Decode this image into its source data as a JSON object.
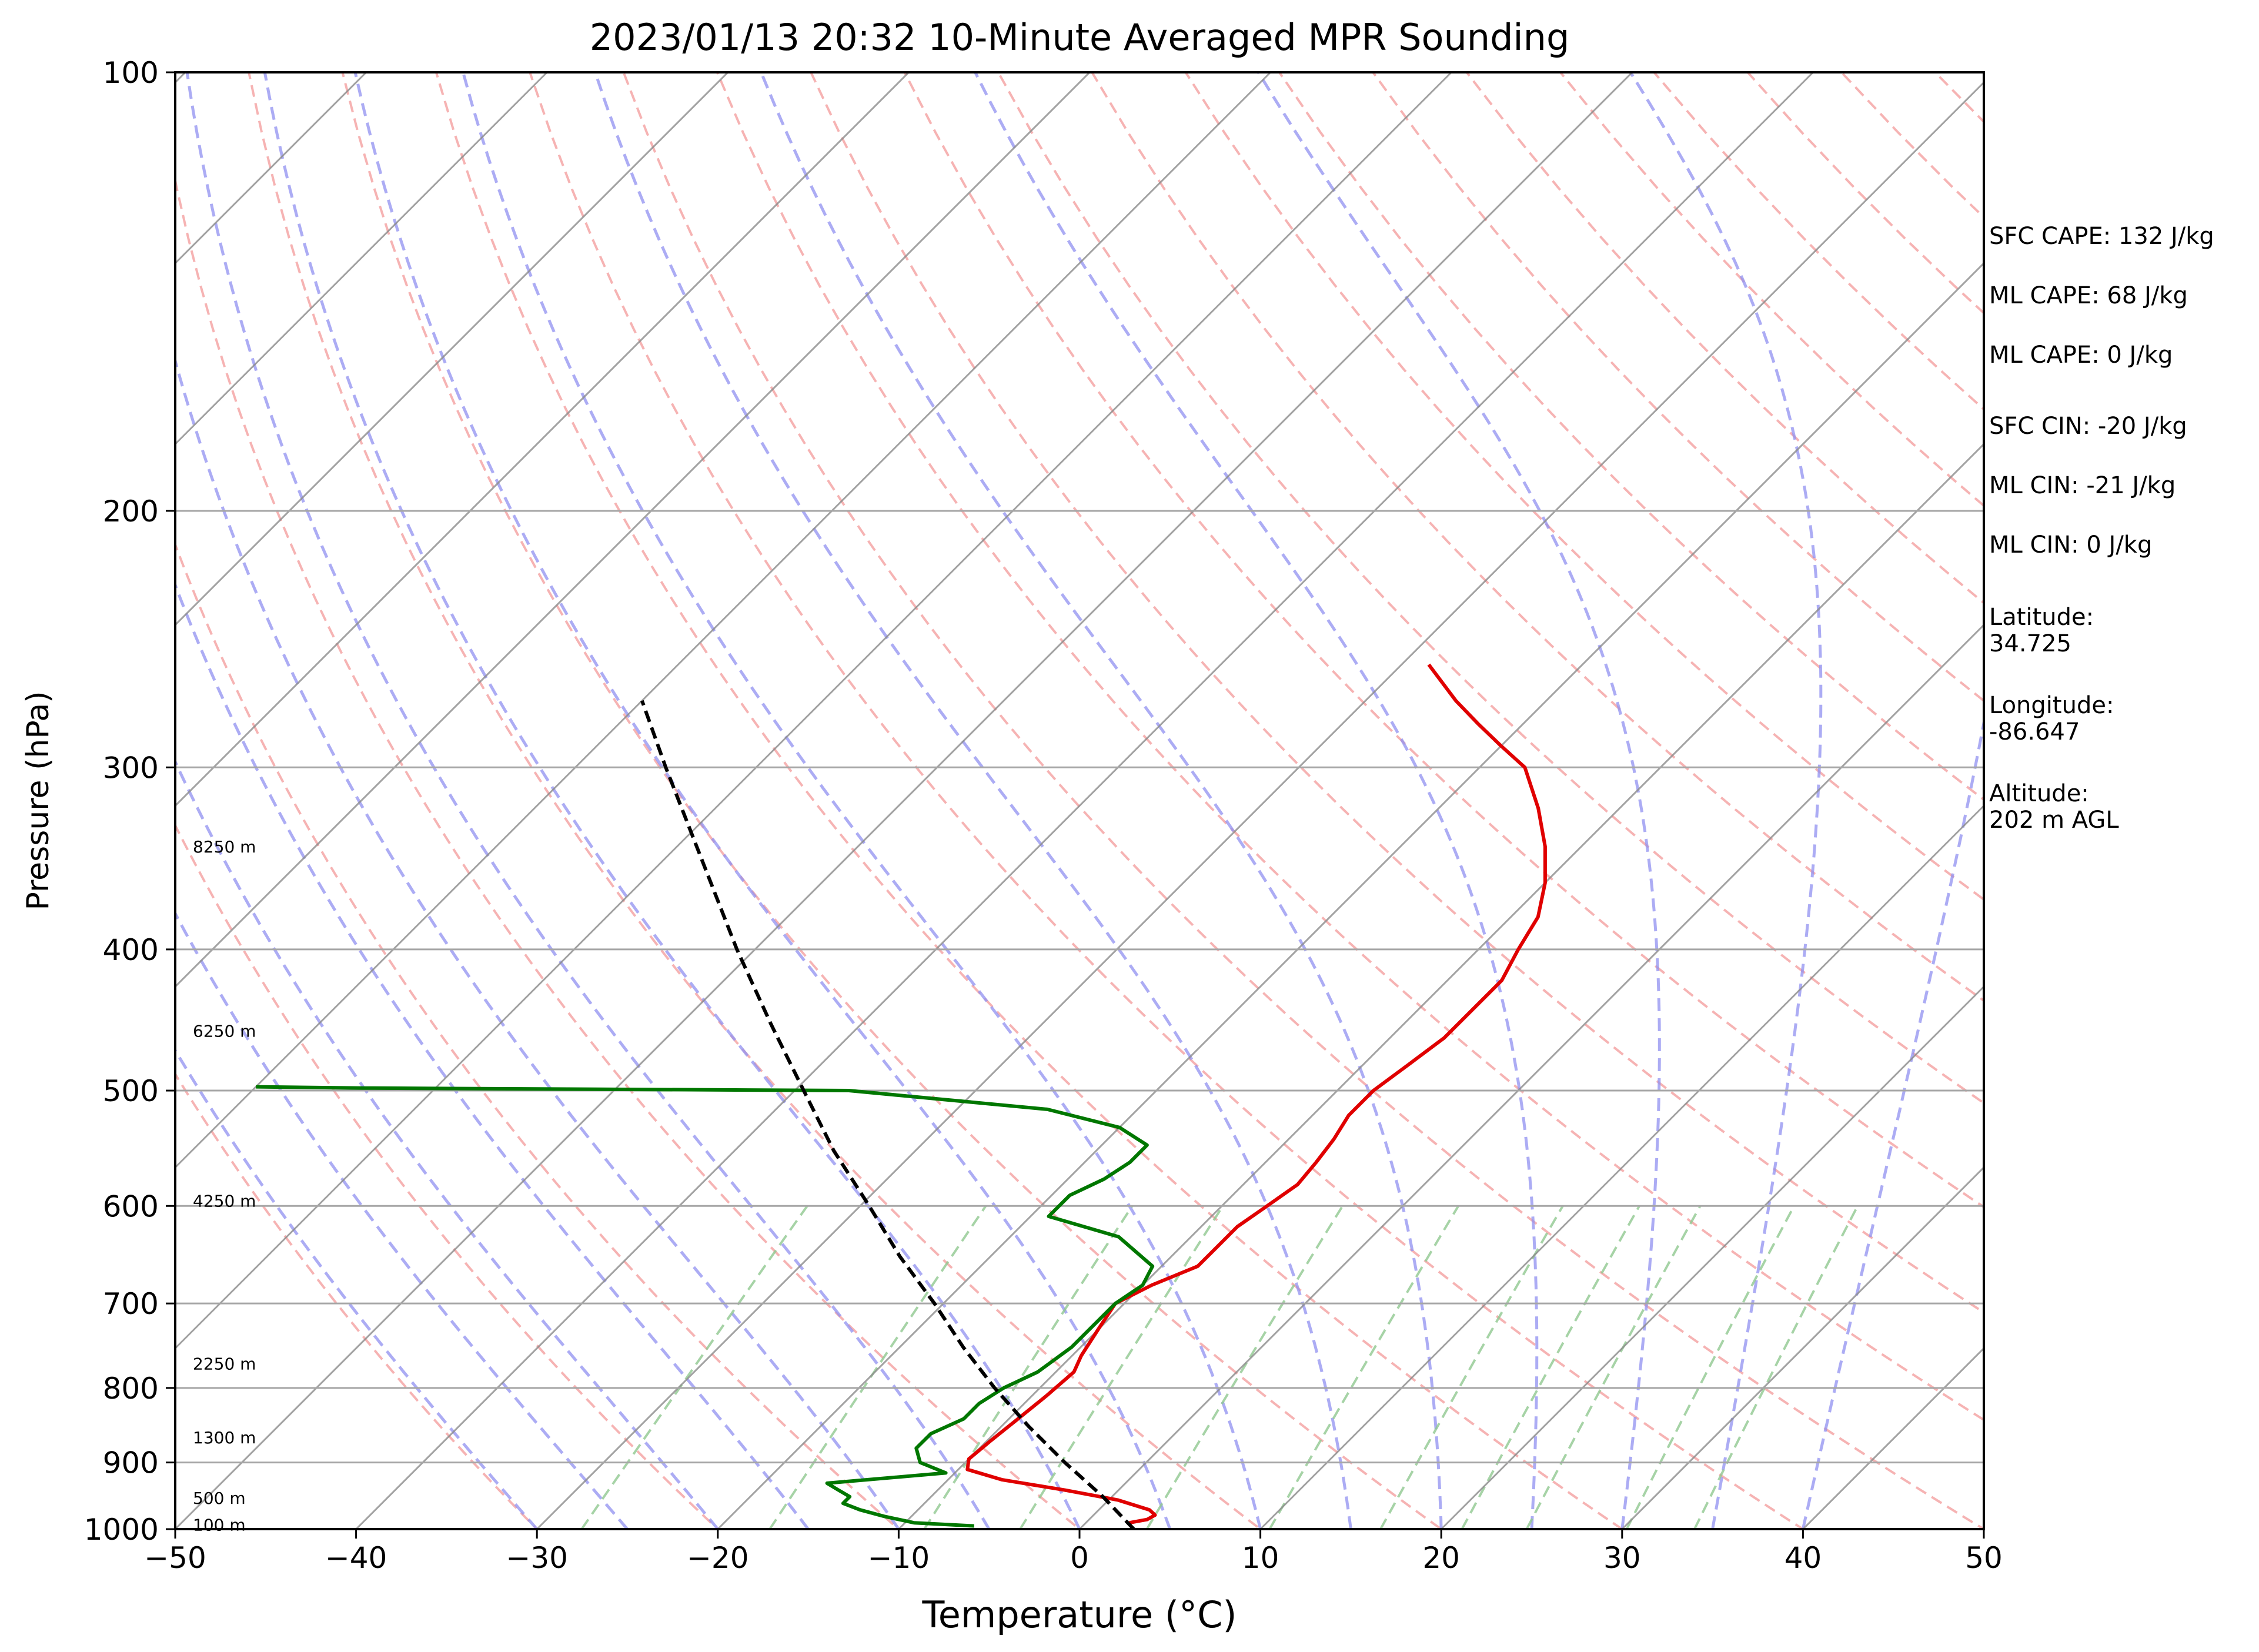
{
  "chart_data": {
    "type": "line",
    "title": "2023/01/13 20:32 10-Minute Averaged MPR Sounding",
    "xlabel": "Temperature (°C)",
    "ylabel": "Pressure (hPa)",
    "xlim": [
      -50,
      50
    ],
    "ylim": [
      1000,
      100
    ],
    "y_scale": "log",
    "skew": true,
    "grid": true,
    "x_ticks": [
      "−50",
      "−40",
      "−30",
      "−20",
      "−10",
      "0",
      "10",
      "20",
      "30",
      "40",
      "50"
    ],
    "y_ticks": [
      "100",
      "200",
      "300",
      "400",
      "500",
      "600",
      "700",
      "800",
      "900",
      "1000"
    ],
    "height_labels": [
      {
        "text": "100 m",
        "p": 993
      },
      {
        "text": "500 m",
        "p": 952
      },
      {
        "text": "1300 m",
        "p": 865
      },
      {
        "text": "2250 m",
        "p": 770
      },
      {
        "text": "4250 m",
        "p": 595
      },
      {
        "text": "6250 m",
        "p": 455
      },
      {
        "text": "8250 m",
        "p": 340
      }
    ],
    "series": [
      {
        "color": "#e00000",
        "points": [
          [
            990,
            2.4
          ],
          [
            985,
            3.2
          ],
          [
            978,
            3.4
          ],
          [
            970,
            2.8
          ],
          [
            955,
            0.5
          ],
          [
            940,
            -3.0
          ],
          [
            925,
            -7.0
          ],
          [
            910,
            -9.5
          ],
          [
            895,
            -10.0
          ],
          [
            870,
            -9.8
          ],
          [
            840,
            -9.5
          ],
          [
            810,
            -9.2
          ],
          [
            780,
            -9.0
          ],
          [
            760,
            -9.5
          ],
          [
            730,
            -10.0
          ],
          [
            700,
            -10.5
          ],
          [
            680,
            -9.5
          ],
          [
            660,
            -8.0
          ],
          [
            640,
            -8.0
          ],
          [
            620,
            -8.0
          ],
          [
            600,
            -7.5
          ],
          [
            580,
            -7.0
          ],
          [
            560,
            -7.2
          ],
          [
            540,
            -7.5
          ],
          [
            520,
            -8.0
          ],
          [
            500,
            -8.0
          ],
          [
            480,
            -7.5
          ],
          [
            460,
            -7.0
          ],
          [
            440,
            -7.0
          ],
          [
            420,
            -7.0
          ],
          [
            400,
            -7.8
          ],
          [
            380,
            -8.5
          ],
          [
            360,
            -10.0
          ],
          [
            340,
            -12.0
          ],
          [
            320,
            -14.5
          ],
          [
            300,
            -17.5
          ],
          [
            290,
            -20.0
          ],
          [
            280,
            -22.5
          ],
          [
            270,
            -25.0
          ],
          [
            255,
            -28.5
          ]
        ]
      },
      {
        "color": "#007700",
        "points": [
          [
            995,
            -6.0
          ],
          [
            990,
            -9.5
          ],
          [
            980,
            -11.5
          ],
          [
            970,
            -13.2
          ],
          [
            960,
            -14.5
          ],
          [
            950,
            -14.5
          ],
          [
            940,
            -15.5
          ],
          [
            930,
            -16.5
          ],
          [
            915,
            -10.5
          ],
          [
            900,
            -12.5
          ],
          [
            880,
            -13.5
          ],
          [
            860,
            -13.5
          ],
          [
            840,
            -12.5
          ],
          [
            820,
            -12.5
          ],
          [
            800,
            -12.0
          ],
          [
            780,
            -11.0
          ],
          [
            750,
            -10.5
          ],
          [
            720,
            -10.5
          ],
          [
            700,
            -10.5
          ],
          [
            680,
            -10.0
          ],
          [
            660,
            -10.5
          ],
          [
            630,
            -14.0
          ],
          [
            610,
            -19.0
          ],
          [
            590,
            -19.0
          ],
          [
            575,
            -18.0
          ],
          [
            560,
            -17.5
          ],
          [
            545,
            -17.5
          ],
          [
            530,
            -20.0
          ],
          [
            515,
            -25.0
          ],
          [
            500,
            -37.0
          ],
          [
            498,
            -64.0
          ],
          [
            497,
            -70.0
          ]
        ]
      },
      {
        "color": "#000000",
        "dashed": true,
        "points": [
          [
            1000,
            3.0
          ],
          [
            950,
            -0.5
          ],
          [
            900,
            -4.5
          ],
          [
            850,
            -8.5
          ],
          [
            800,
            -12.5
          ],
          [
            750,
            -16.5
          ],
          [
            700,
            -20.5
          ],
          [
            650,
            -25.0
          ],
          [
            600,
            -29.5
          ],
          [
            550,
            -34.5
          ],
          [
            500,
            -39.5
          ],
          [
            450,
            -45.0
          ],
          [
            400,
            -51.0
          ],
          [
            350,
            -57.5
          ],
          [
            300,
            -65.0
          ],
          [
            270,
            -70.0
          ]
        ]
      }
    ]
  },
  "side_stats": {
    "sfc_cape": "SFC CAPE: 132 J/kg",
    "ml_cape": "ML CAPE: 68 J/kg",
    "ml_cape_2": "ML CAPE: 0 J/kg",
    "sfc_cin": "SFC CIN: -20 J/kg",
    "ml_cin": "ML CIN: -21 J/kg",
    "ml_cin_2": "ML CIN: 0 J/kg",
    "latitude_label": "Latitude:",
    "latitude_value": "34.725",
    "longitude_label": "Longitude:",
    "longitude_value": "-86.647",
    "altitude_label": "Altitude:",
    "altitude_value": "202 m AGL"
  },
  "colors": {
    "dry_adiabat": "#f4a0a0",
    "moist_adiabat": "#9090f0",
    "mixing_ratio": "#90c890",
    "isotherm": "#8c8c8c",
    "isobar": "#a6a6a6"
  }
}
